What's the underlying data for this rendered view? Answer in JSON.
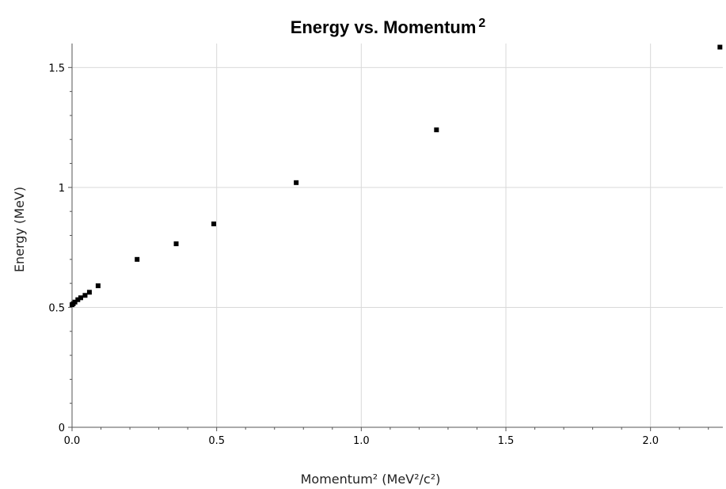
{
  "chart_data": {
    "type": "scatter",
    "title": "Energy vs. Momentum",
    "title_superscript": "2",
    "xlabel": "Momentum² (MeV²/c²)",
    "ylabel": "Energy (MeV)",
    "xlim": [
      0,
      2.25
    ],
    "ylim": [
      0,
      1.6
    ],
    "xticks": [
      0,
      0.5,
      1,
      1.5,
      2
    ],
    "xtick_labels": [
      "0.0",
      "0.5",
      "1.0",
      "1.5",
      "2.0"
    ],
    "yticks": [
      0,
      0.5,
      1,
      1.5
    ],
    "ytick_labels": [
      "0",
      "0.5",
      "1",
      "1.5"
    ],
    "grid": true,
    "marker_color": "#000000",
    "points": [
      {
        "x": 0.0,
        "y": 0.511
      },
      {
        "x": 0.004,
        "y": 0.515
      },
      {
        "x": 0.01,
        "y": 0.522
      },
      {
        "x": 0.02,
        "y": 0.532
      },
      {
        "x": 0.03,
        "y": 0.54
      },
      {
        "x": 0.045,
        "y": 0.55
      },
      {
        "x": 0.06,
        "y": 0.563
      },
      {
        "x": 0.09,
        "y": 0.59
      },
      {
        "x": 0.225,
        "y": 0.7
      },
      {
        "x": 0.36,
        "y": 0.765
      },
      {
        "x": 0.49,
        "y": 0.848
      },
      {
        "x": 0.775,
        "y": 1.02
      },
      {
        "x": 1.26,
        "y": 1.24
      },
      {
        "x": 2.24,
        "y": 1.585
      }
    ]
  }
}
